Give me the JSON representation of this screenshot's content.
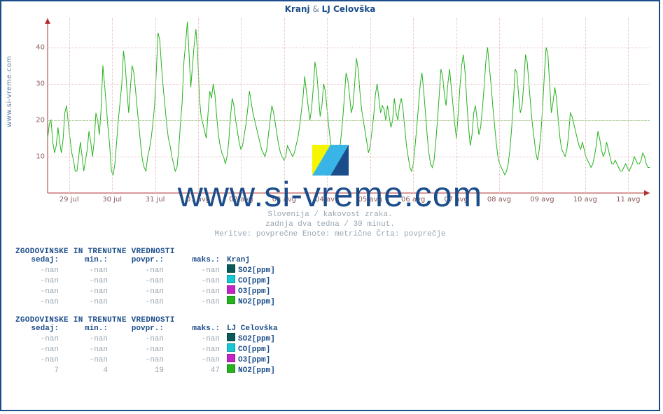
{
  "title_parts": {
    "a": "Kranj",
    "amp": " & ",
    "b": "LJ Celovška"
  },
  "side_url": "www.si-vreme.com",
  "watermark_text": "www.si-vreme.com",
  "caption": {
    "l1": "Slovenija / kakovost zraka.",
    "l2": "zadnja dva tedna / 30 minut.",
    "l3": "Meritve: povprečne  Enote: metrične  Črta: povprečje"
  },
  "chart": {
    "type": "line",
    "bg_color": "#ffffff",
    "grid_color": "#e8c0c0",
    "axis_color": "#b03030",
    "series_color": "#25b31f",
    "ref_line_color": "#9fd48f",
    "ref_line_y": 20,
    "title_color": "#1b4d8a",
    "tick_color": "#8a5a5a",
    "caption_color": "#9aa7b3",
    "ylim": [
      0,
      48
    ],
    "ytick_step": 10,
    "yticks": [
      10,
      20,
      30,
      40
    ],
    "x_categories": [
      "29 jul",
      "30 jul",
      "31 jul",
      "01 avg",
      "02 avg",
      "03 avg",
      "04 avg",
      "05 avg",
      "06 avg",
      "07 avg",
      "08 avg",
      "09 avg",
      "10 avg",
      "11 avg"
    ],
    "line_width": 1,
    "series": [
      15,
      19,
      20,
      14,
      11,
      13,
      18,
      14,
      11,
      15,
      22,
      24,
      19,
      15,
      11,
      9,
      6,
      6,
      10,
      14,
      10,
      6,
      9,
      12,
      17,
      14,
      10,
      14,
      22,
      20,
      16,
      23,
      35,
      30,
      24,
      18,
      13,
      6,
      5,
      8,
      14,
      20,
      25,
      30,
      39,
      35,
      28,
      22,
      29,
      35,
      33,
      28,
      23,
      18,
      13,
      9,
      7,
      6,
      10,
      12,
      15,
      19,
      24,
      33,
      44,
      42,
      35,
      29,
      24,
      19,
      15,
      13,
      10,
      8,
      6,
      7,
      12,
      19,
      25,
      36,
      41,
      47,
      38,
      29,
      35,
      41,
      45,
      38,
      26,
      21,
      19,
      17,
      15,
      22,
      28,
      26,
      30,
      27,
      21,
      16,
      13,
      11,
      10,
      8,
      10,
      14,
      21,
      26,
      24,
      20,
      17,
      14,
      12,
      13,
      16,
      19,
      23,
      28,
      25,
      22,
      20,
      18,
      16,
      14,
      12,
      11,
      10,
      12,
      16,
      20,
      24,
      22,
      19,
      16,
      13,
      11,
      10,
      9,
      10,
      13,
      12,
      11,
      10,
      11,
      13,
      15,
      18,
      22,
      26,
      32,
      28,
      24,
      20,
      23,
      29,
      36,
      33,
      27,
      21,
      24,
      30,
      28,
      23,
      18,
      14,
      11,
      8,
      6,
      7,
      10,
      15,
      20,
      26,
      33,
      31,
      27,
      22,
      24,
      30,
      37,
      34,
      28,
      23,
      20,
      17,
      14,
      11,
      13,
      17,
      21,
      27,
      30,
      26,
      22,
      24,
      23,
      20,
      24,
      21,
      18,
      20,
      26,
      22,
      20,
      24,
      26,
      23,
      18,
      13,
      10,
      7,
      6,
      8,
      13,
      18,
      24,
      30,
      33,
      28,
      22,
      16,
      11,
      8,
      7,
      9,
      14,
      20,
      27,
      34,
      32,
      27,
      24,
      30,
      34,
      29,
      24,
      19,
      15,
      22,
      29,
      35,
      38,
      33,
      25,
      18,
      13,
      16,
      22,
      24,
      20,
      16,
      18,
      23,
      29,
      36,
      40,
      35,
      30,
      24,
      19,
      14,
      10,
      8,
      7,
      6,
      5,
      6,
      8,
      12,
      18,
      25,
      34,
      33,
      27,
      22,
      24,
      30,
      38,
      36,
      30,
      24,
      19,
      15,
      11,
      9,
      12,
      17,
      24,
      33,
      40,
      38,
      30,
      22,
      25,
      29,
      26,
      20,
      15,
      12,
      11,
      10,
      12,
      16,
      22,
      21,
      19,
      17,
      15,
      13,
      12,
      14,
      12,
      10,
      9,
      8,
      7,
      8,
      10,
      13,
      17,
      15,
      12,
      10,
      11,
      14,
      12,
      10,
      8,
      8,
      9,
      8,
      7,
      6,
      6,
      7,
      8,
      7,
      6,
      7,
      8,
      10,
      9,
      8,
      8,
      9,
      11,
      10,
      8,
      7,
      7
    ]
  },
  "legend_colors": {
    "SO2": "#0a5a5a",
    "CO": "#16c7d4",
    "O3": "#c724c7",
    "NO2": "#25b31f"
  },
  "tables": [
    {
      "title": "ZGODOVINSKE IN TRENUTNE VREDNOSTI",
      "location": "Kranj",
      "head": {
        "now": "sedaj:",
        "min": "min.:",
        "avg": "povpr.:",
        "max": "maks.:"
      },
      "rows": [
        {
          "now": "-nan",
          "min": "-nan",
          "avg": "-nan",
          "max": "-nan",
          "param": "SO2[ppm]",
          "color_key": "SO2"
        },
        {
          "now": "-nan",
          "min": "-nan",
          "avg": "-nan",
          "max": "-nan",
          "param": "CO[ppm]",
          "color_key": "CO"
        },
        {
          "now": "-nan",
          "min": "-nan",
          "avg": "-nan",
          "max": "-nan",
          "param": "O3[ppm]",
          "color_key": "O3"
        },
        {
          "now": "-nan",
          "min": "-nan",
          "avg": "-nan",
          "max": "-nan",
          "param": "NO2[ppm]",
          "color_key": "NO2"
        }
      ]
    },
    {
      "title": "ZGODOVINSKE IN TRENUTNE VREDNOSTI",
      "location": "LJ Celovška",
      "head": {
        "now": "sedaj:",
        "min": "min.:",
        "avg": "povpr.:",
        "max": "maks.:"
      },
      "rows": [
        {
          "now": "-nan",
          "min": "-nan",
          "avg": "-nan",
          "max": "-nan",
          "param": "SO2[ppm]",
          "color_key": "SO2"
        },
        {
          "now": "-nan",
          "min": "-nan",
          "avg": "-nan",
          "max": "-nan",
          "param": "CO[ppm]",
          "color_key": "CO"
        },
        {
          "now": "-nan",
          "min": "-nan",
          "avg": "-nan",
          "max": "-nan",
          "param": "O3[ppm]",
          "color_key": "O3"
        },
        {
          "now": "7",
          "min": "4",
          "avg": "19",
          "max": "47",
          "param": "NO2[ppm]",
          "color_key": "NO2"
        }
      ]
    }
  ]
}
